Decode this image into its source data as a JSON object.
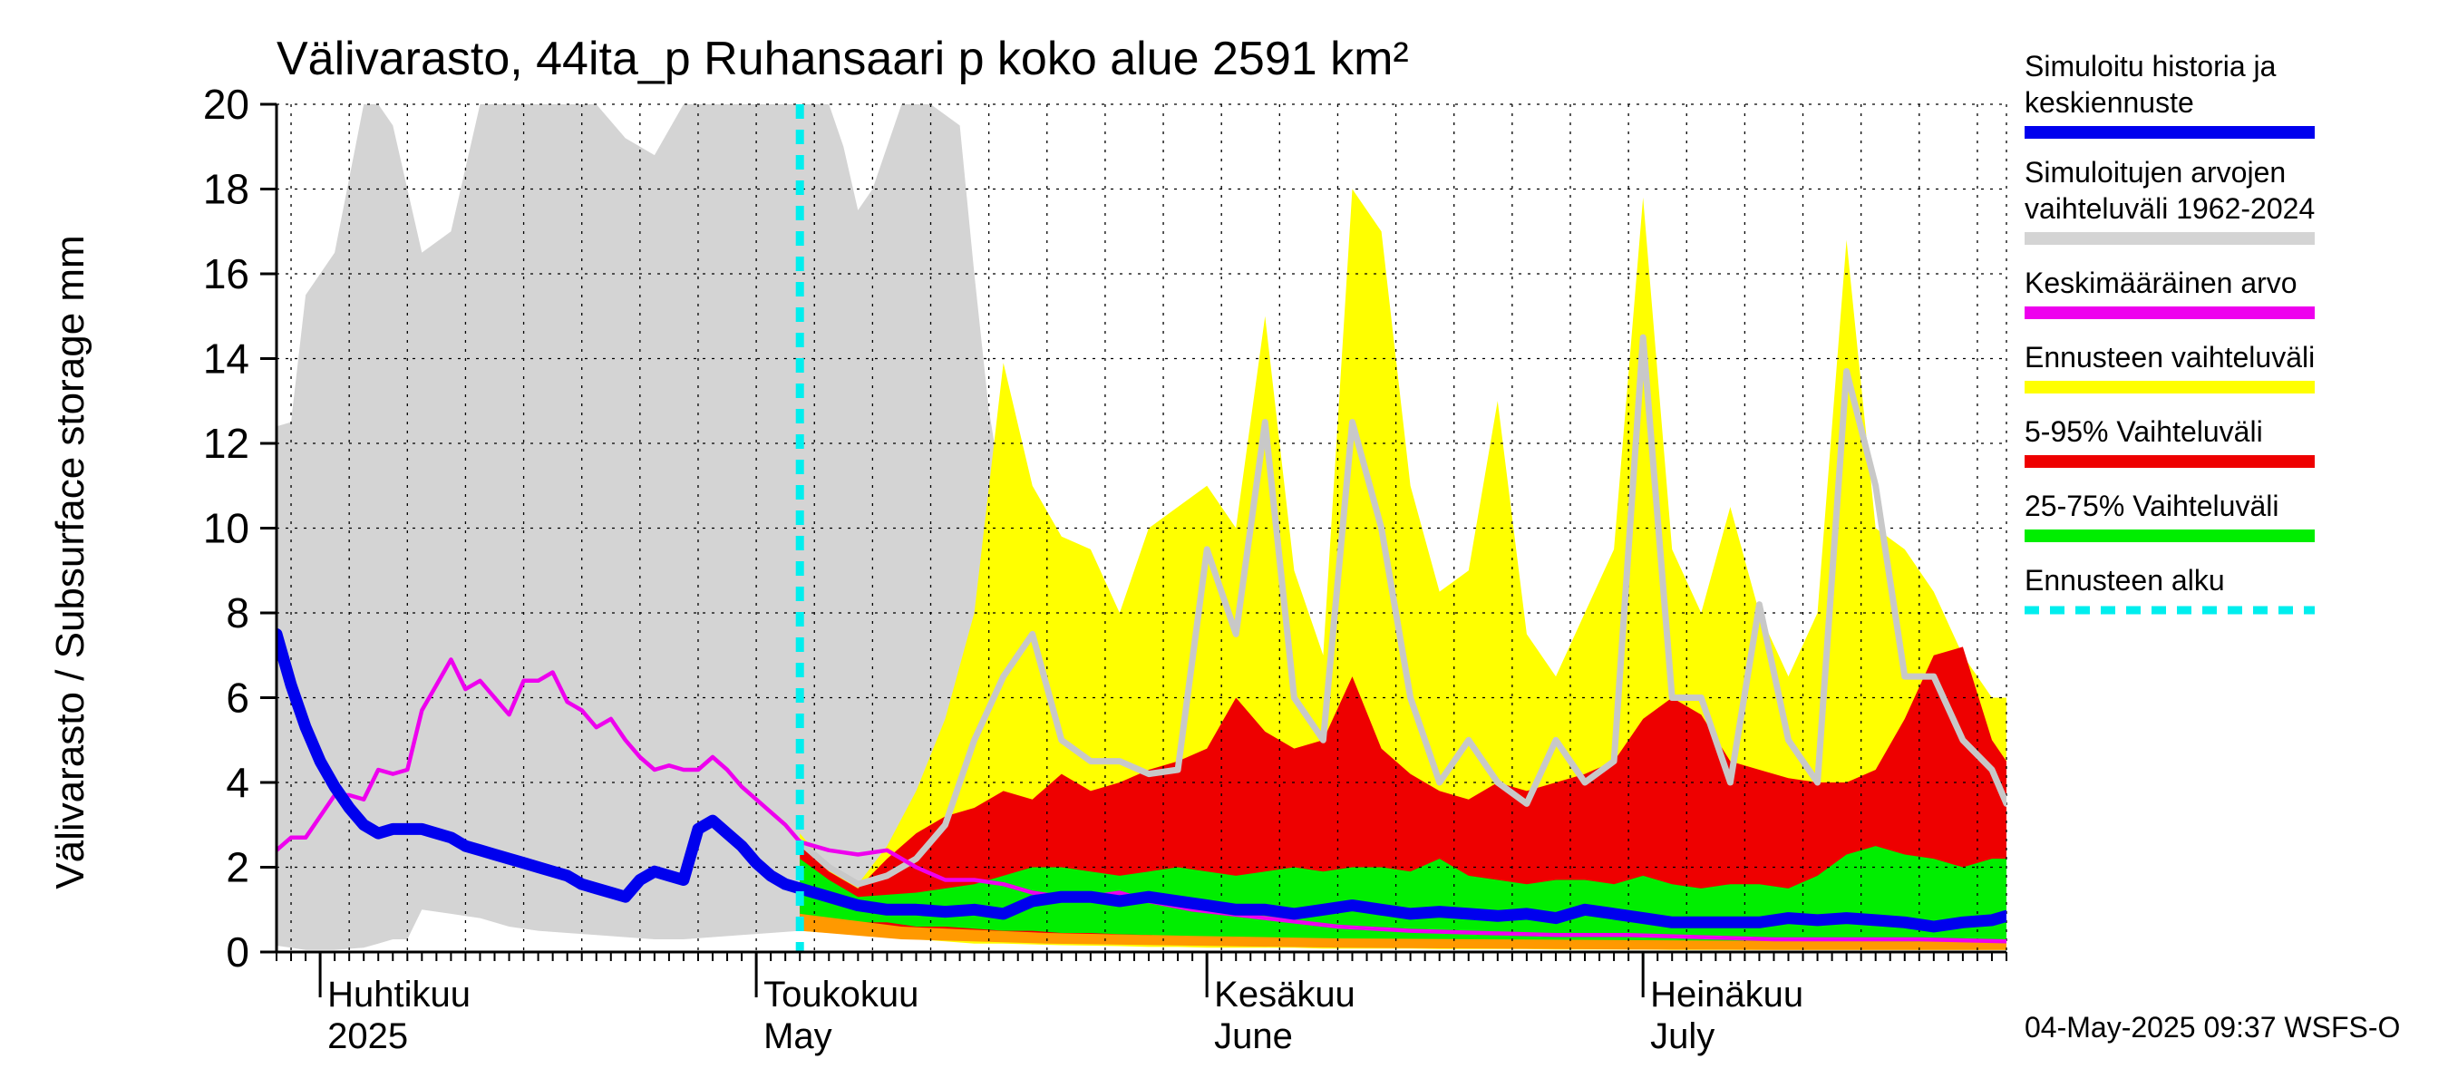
{
  "chart_data": {
    "type": "area",
    "title": "Välivarasto, 44ita_p Ruhansaari p koko alue 2591 km²",
    "ylabel": "Välivarasto / Subsurface storage  mm",
    "ylim": [
      0,
      20
    ],
    "yticks": [
      0,
      2,
      4,
      6,
      8,
      10,
      12,
      14,
      16,
      18,
      20
    ],
    "xlim_day": [
      -33,
      86
    ],
    "forecast_start_day": 3,
    "grid": true,
    "months": [
      {
        "name": "Huhtikuu",
        "sub": "2025",
        "day": -30
      },
      {
        "name": "Toukokuu",
        "sub": "May",
        "day": 0
      },
      {
        "name": "Kesäkuu",
        "sub": "June",
        "day": 31
      },
      {
        "name": "Heinäkuu",
        "sub": "July",
        "day": 61
      }
    ],
    "colors": {
      "history": "#d4d4d4",
      "yellow": "#ffff00",
      "red": "#ee0000",
      "green": "#00ee00",
      "orange": "#ff9900",
      "mean": "#ee00ee",
      "median_forecast": "#c8c8c8",
      "simulated": "#0000ee",
      "forecast_start": "#00eeee"
    },
    "series": [
      {
        "name": "history_range",
        "kind": "band",
        "x": [
          -33,
          -32,
          -31,
          -29,
          -27,
          -26,
          -25,
          -24,
          -23,
          -21,
          -19,
          -17,
          -15,
          -13,
          -11,
          -9,
          -7,
          -5,
          -3,
          -1,
          1,
          3,
          5,
          6,
          7,
          8,
          10,
          12,
          14,
          15,
          16,
          17,
          18,
          19,
          20,
          21,
          22,
          23,
          24,
          25,
          26,
          27,
          28,
          29,
          30,
          31,
          32,
          33,
          34,
          35,
          36,
          37,
          38,
          40,
          42,
          45,
          50,
          60,
          70,
          86
        ],
        "upper": [
          12.4,
          12.5,
          15.5,
          16.5,
          20,
          20,
          19.5,
          18,
          16.5,
          17,
          20,
          20,
          20,
          20,
          20,
          19.2,
          18.8,
          20,
          20,
          20,
          20,
          20,
          20,
          19,
          17.5,
          18,
          20,
          20,
          19.5,
          16,
          12.8,
          10.7,
          9.3,
          9.8,
          8.1,
          7.3,
          7.0,
          6.7,
          6.1,
          5.5,
          5.3,
          5.0,
          5.0,
          5.0,
          5.0,
          7.0,
          9.0,
          8.8,
          8.0,
          8.5,
          7.5,
          8.2,
          7.0,
          5.6,
          5.0,
          4.5,
          4.0,
          3.5,
          3.2,
          3.0
        ],
        "lower": [
          0.15,
          0.1,
          0.05,
          0.05,
          0.1,
          0.2,
          0.3,
          0.3,
          1.0,
          0.9,
          0.8,
          0.6,
          0.5,
          0.45,
          0.4,
          0.35,
          0.3,
          0.3,
          0.35,
          0.4,
          0.45,
          0.5,
          0.6,
          0.6,
          0.6,
          0.6,
          0.5,
          0.4,
          0.35,
          0.35,
          0.3,
          0.3,
          0.3,
          0.3,
          0.3,
          0.3,
          0.3,
          0.3,
          0.3,
          0.3,
          0.25,
          0.2,
          0.2,
          0.2,
          0.2,
          0.2,
          0.2,
          0.2,
          0.2,
          0.2,
          0.2,
          0.2,
          0.2,
          0.2,
          0.2,
          0.2,
          0.2,
          0.2,
          0.2,
          0.2
        ]
      },
      {
        "name": "forecast_range",
        "kind": "band",
        "x": [
          3,
          5,
          7,
          9,
          11,
          13,
          15,
          17,
          19,
          21,
          23,
          25,
          27,
          29,
          31,
          33,
          35,
          37,
          39,
          41,
          43,
          45,
          47,
          49,
          51,
          53,
          55,
          57,
          59,
          61,
          63,
          65,
          67,
          69,
          71,
          73,
          75,
          77,
          79,
          81,
          83,
          85,
          86
        ],
        "upper": [
          2.8,
          2.0,
          1.6,
          2.5,
          3.8,
          5.5,
          8.0,
          13.9,
          11.0,
          9.8,
          9.5,
          8.0,
          10.0,
          10.5,
          11.0,
          10.0,
          15.0,
          9.0,
          7.0,
          18.0,
          17.0,
          11.0,
          8.5,
          9.0,
          13.0,
          7.5,
          6.5,
          8.0,
          9.5,
          17.8,
          9.5,
          8.0,
          10.5,
          8.0,
          6.5,
          8.0,
          16.8,
          10.0,
          9.5,
          8.5,
          7.0,
          6.0,
          6.0
        ],
        "lower": [
          0.5,
          0.45,
          0.4,
          0.35,
          0.3,
          0.25,
          0.2,
          0.2,
          0.18,
          0.16,
          0.15,
          0.14,
          0.12,
          0.12,
          0.1,
          0.1,
          0.1,
          0.1,
          0.08,
          0.08,
          0.08,
          0.08,
          0.07,
          0.07,
          0.07,
          0.07,
          0.06,
          0.06,
          0.06,
          0.06,
          0.05,
          0.05,
          0.05,
          0.05,
          0.05,
          0.05,
          0.05,
          0.05,
          0.05,
          0.05,
          0.05,
          0.05,
          0.05
        ]
      },
      {
        "name": "range_5_95",
        "kind": "band",
        "x": [
          3,
          5,
          7,
          9,
          11,
          13,
          15,
          17,
          19,
          21,
          23,
          25,
          27,
          29,
          31,
          33,
          35,
          37,
          39,
          41,
          43,
          45,
          47,
          49,
          51,
          53,
          55,
          57,
          59,
          61,
          63,
          65,
          67,
          69,
          71,
          73,
          75,
          77,
          79,
          81,
          83,
          85,
          86
        ],
        "upper": [
          2.5,
          1.9,
          1.5,
          2.2,
          2.8,
          3.2,
          3.4,
          3.8,
          3.6,
          4.2,
          3.8,
          4.0,
          4.3,
          4.5,
          4.8,
          6.0,
          5.2,
          4.8,
          5.0,
          6.5,
          4.8,
          4.2,
          3.8,
          3.6,
          4.0,
          3.8,
          4.0,
          4.2,
          4.5,
          5.5,
          6.0,
          5.6,
          4.5,
          4.3,
          4.1,
          4.0,
          4.0,
          4.3,
          5.5,
          7.0,
          7.2,
          5.0,
          4.5
        ],
        "lower": [
          0.6,
          0.55,
          0.5,
          0.45,
          0.4,
          0.35,
          0.3,
          0.3,
          0.28,
          0.26,
          0.25,
          0.24,
          0.22,
          0.2,
          0.2,
          0.18,
          0.18,
          0.16,
          0.16,
          0.15,
          0.15,
          0.14,
          0.14,
          0.13,
          0.13,
          0.12,
          0.12,
          0.12,
          0.12,
          0.11,
          0.11,
          0.1,
          0.1,
          0.1,
          0.1,
          0.1,
          0.1,
          0.1,
          0.1,
          0.1,
          0.1,
          0.1,
          0.1
        ]
      },
      {
        "name": "range_25_75",
        "kind": "band",
        "x": [
          3,
          5,
          7,
          9,
          11,
          13,
          15,
          17,
          19,
          21,
          23,
          25,
          27,
          29,
          31,
          33,
          35,
          37,
          39,
          41,
          43,
          45,
          47,
          49,
          51,
          53,
          55,
          57,
          59,
          61,
          63,
          65,
          67,
          69,
          71,
          73,
          75,
          77,
          79,
          81,
          83,
          85,
          86
        ],
        "upper": [
          2.2,
          1.7,
          1.3,
          1.35,
          1.4,
          1.5,
          1.6,
          1.8,
          2.0,
          2.0,
          1.9,
          1.8,
          1.9,
          2.0,
          1.9,
          1.8,
          1.9,
          2.0,
          1.9,
          2.0,
          2.0,
          1.9,
          2.2,
          1.8,
          1.7,
          1.6,
          1.7,
          1.7,
          1.6,
          1.8,
          1.6,
          1.5,
          1.6,
          1.6,
          1.5,
          1.8,
          2.3,
          2.5,
          2.3,
          2.2,
          2.0,
          2.2,
          2.2
        ],
        "lower": [
          0.9,
          0.8,
          0.7,
          0.7,
          0.6,
          0.6,
          0.55,
          0.5,
          0.5,
          0.45,
          0.45,
          0.42,
          0.4,
          0.38,
          0.36,
          0.35,
          0.33,
          0.32,
          0.3,
          0.3,
          0.3,
          0.28,
          0.28,
          0.26,
          0.26,
          0.25,
          0.25,
          0.24,
          0.24,
          0.24,
          0.23,
          0.23,
          0.22,
          0.22,
          0.22,
          0.22,
          0.22,
          0.22,
          0.22,
          0.22,
          0.22,
          0.22,
          0.22
        ]
      },
      {
        "name": "range_lowest",
        "kind": "band",
        "x": [
          3,
          10,
          20,
          30,
          40,
          50,
          60,
          70,
          80,
          86
        ],
        "upper": [
          0.9,
          0.6,
          0.45,
          0.38,
          0.32,
          0.3,
          0.28,
          0.26,
          0.25,
          0.25
        ],
        "lower": [
          0.5,
          0.3,
          0.2,
          0.15,
          0.1,
          0.08,
          0.06,
          0.05,
          0.05,
          0.05
        ]
      },
      {
        "name": "median_forecast",
        "kind": "line",
        "x": [
          3,
          5,
          7,
          9,
          11,
          13,
          15,
          17,
          19,
          21,
          23,
          25,
          27,
          29,
          31,
          33,
          35,
          37,
          39,
          41,
          43,
          45,
          47,
          49,
          51,
          53,
          55,
          57,
          59,
          61,
          63,
          65,
          67,
          69,
          71,
          73,
          75,
          77,
          79,
          81,
          83,
          85,
          86
        ],
        "values": [
          2.6,
          2.0,
          1.6,
          1.8,
          2.2,
          3.0,
          5.0,
          6.5,
          7.5,
          5.0,
          4.5,
          4.5,
          4.2,
          4.3,
          9.5,
          7.5,
          12.5,
          6.0,
          5.0,
          12.5,
          10.0,
          6.0,
          4.0,
          5.0,
          4.0,
          3.5,
          5.0,
          4.0,
          4.5,
          14.5,
          6.0,
          6.0,
          4.0,
          8.2,
          5.0,
          4.0,
          13.7,
          11.0,
          6.5,
          6.5,
          5.0,
          4.3,
          3.5
        ]
      },
      {
        "name": "Keskimääräinen arvo",
        "kind": "line",
        "x": [
          -33,
          -32,
          -31,
          -30,
          -29,
          -28,
          -27,
          -26,
          -25,
          -24,
          -23,
          -22,
          -21,
          -20,
          -19,
          -18,
          -17,
          -16,
          -15,
          -14,
          -13,
          -12,
          -11,
          -10,
          -9,
          -8,
          -7,
          -6,
          -5,
          -4,
          -3,
          -2,
          -1,
          0,
          1,
          2,
          3,
          5,
          7,
          9,
          11,
          13,
          15,
          17,
          19,
          21,
          23,
          25,
          27,
          30,
          35,
          40,
          45,
          50,
          55,
          60,
          65,
          70,
          75,
          80,
          86
        ],
        "values": [
          2.4,
          2.7,
          2.7,
          3.2,
          3.7,
          3.7,
          3.6,
          4.3,
          4.2,
          4.3,
          5.7,
          6.3,
          6.9,
          6.2,
          6.4,
          6.0,
          5.6,
          6.4,
          6.4,
          6.6,
          5.9,
          5.7,
          5.3,
          5.5,
          5.0,
          4.6,
          4.3,
          4.4,
          4.3,
          4.3,
          4.6,
          4.3,
          3.9,
          3.6,
          3.3,
          3.0,
          2.6,
          2.4,
          2.3,
          2.4,
          2.0,
          1.7,
          1.7,
          1.6,
          1.4,
          1.3,
          1.3,
          1.4,
          1.2,
          1.0,
          0.8,
          0.6,
          0.5,
          0.45,
          0.4,
          0.4,
          0.35,
          0.3,
          0.3,
          0.3,
          0.25
        ]
      },
      {
        "name": "Simuloitu historia ja keskiennuste",
        "kind": "line",
        "x": [
          -33,
          -32,
          -31,
          -30,
          -29,
          -28,
          -27,
          -26,
          -25,
          -24,
          -23,
          -22,
          -21,
          -20,
          -19,
          -18,
          -17,
          -16,
          -15,
          -14,
          -13,
          -12,
          -11,
          -10,
          -9,
          -8,
          -7,
          -6,
          -5,
          -4,
          -3,
          -2,
          -1,
          0,
          1,
          2,
          3,
          5,
          7,
          9,
          11,
          13,
          15,
          17,
          19,
          21,
          23,
          25,
          27,
          29,
          31,
          33,
          35,
          37,
          39,
          41,
          43,
          45,
          47,
          49,
          51,
          53,
          55,
          57,
          59,
          61,
          63,
          65,
          67,
          69,
          71,
          73,
          75,
          77,
          79,
          81,
          83,
          85,
          86
        ],
        "values": [
          7.5,
          6.3,
          5.3,
          4.5,
          3.9,
          3.4,
          3.0,
          2.8,
          2.9,
          2.9,
          2.9,
          2.8,
          2.7,
          2.5,
          2.4,
          2.3,
          2.2,
          2.1,
          2.0,
          1.9,
          1.8,
          1.6,
          1.5,
          1.4,
          1.3,
          1.7,
          1.9,
          1.8,
          1.7,
          2.9,
          3.1,
          2.8,
          2.5,
          2.1,
          1.8,
          1.6,
          1.5,
          1.3,
          1.1,
          1.0,
          1.0,
          0.95,
          1.0,
          0.9,
          1.2,
          1.3,
          1.3,
          1.2,
          1.3,
          1.2,
          1.1,
          1.0,
          1.0,
          0.9,
          1.0,
          1.1,
          1.0,
          0.9,
          0.95,
          0.9,
          0.85,
          0.9,
          0.8,
          1.0,
          0.9,
          0.8,
          0.7,
          0.7,
          0.7,
          0.7,
          0.8,
          0.75,
          0.8,
          0.75,
          0.7,
          0.6,
          0.7,
          0.75,
          0.85
        ]
      }
    ],
    "legend": [
      {
        "lines": [
          "Simuloitu historia ja",
          "keskiennuste"
        ],
        "color": "#0000ee",
        "style": "solid"
      },
      {
        "lines": [
          "Simuloitujen arvojen",
          "vaihteluväli 1962-2024"
        ],
        "color": "#d4d4d4",
        "style": "solid"
      },
      {
        "lines": [
          "Keskimääräinen arvo"
        ],
        "color": "#ee00ee",
        "style": "solid"
      },
      {
        "lines": [
          "Ennusteen vaihteluväli"
        ],
        "color": "#ffff00",
        "style": "solid"
      },
      {
        "lines": [
          "5-95% Vaihteluväli"
        ],
        "color": "#ee0000",
        "style": "solid"
      },
      {
        "lines": [
          "25-75% Vaihteluväli"
        ],
        "color": "#00ee00",
        "style": "solid"
      },
      {
        "lines": [
          "Ennusteen alku"
        ],
        "color": "#00eeee",
        "style": "dashed"
      }
    ],
    "timestamp": "04-May-2025 09:37 WSFS-O"
  }
}
